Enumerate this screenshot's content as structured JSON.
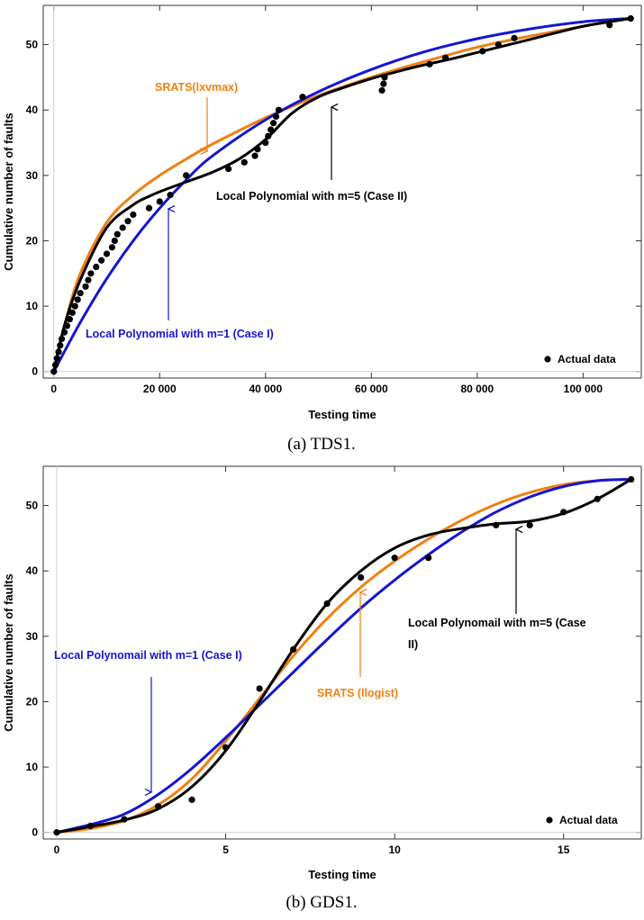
{
  "chart_data": [
    {
      "id": "a",
      "type": "line",
      "caption": "(a)  TDS1.",
      "xlabel": "Testing time",
      "ylabel": "Cumulative number of faults",
      "xlim": [
        -2000,
        111000
      ],
      "ylim": [
        -1,
        56
      ],
      "xticks": [
        0,
        20000,
        40000,
        60000,
        80000,
        100000
      ],
      "xtick_labels": [
        "0",
        "20 000",
        "40 000",
        "60 000",
        "80 000",
        "100 000"
      ],
      "yticks": [
        0,
        10,
        20,
        30,
        40,
        50
      ],
      "ytick_labels": [
        "0",
        "10",
        "20",
        "30",
        "40",
        "50"
      ],
      "grid": false,
      "legend": {
        "label": "Actual data",
        "position": "bottom-right"
      },
      "scatter": {
        "name": "Actual data",
        "color": "#000000",
        "x": [
          0,
          300,
          600,
          900,
          1200,
          1500,
          2000,
          2500,
          3000,
          3500,
          4000,
          4500,
          5000,
          6000,
          6500,
          7000,
          8000,
          9000,
          10000,
          11000,
          11500,
          12000,
          13000,
          14000,
          15000,
          18000,
          20000,
          22000,
          25000,
          33000,
          36000,
          38000,
          38500,
          40000,
          40500,
          41000,
          41500,
          42000,
          42500,
          47000,
          62000,
          62300,
          62500,
          71000,
          74000,
          81000,
          84000,
          87000,
          105000,
          109000
        ],
        "y": [
          0,
          1,
          2,
          3,
          4,
          5,
          6,
          7,
          8,
          9,
          10,
          11,
          12,
          13,
          14,
          15,
          16,
          17,
          18,
          19,
          20,
          21,
          22,
          23,
          24,
          25,
          26,
          27,
          30,
          31,
          32,
          33,
          34,
          35,
          36,
          37,
          38,
          39,
          40,
          42,
          43,
          44,
          45,
          47,
          48,
          49,
          50,
          51,
          53,
          54
        ]
      },
      "series": [
        {
          "name": "SRATS(lxvmax)",
          "color": "#f08010",
          "x": [
            0,
            2000,
            5000,
            10000,
            15000,
            20000,
            25000,
            30000,
            40000,
            50000,
            60000,
            70000,
            80000,
            90000,
            100000,
            109000
          ],
          "y": [
            0,
            7,
            15,
            22.8,
            27,
            30,
            32.5,
            34.8,
            38.8,
            42.2,
            45,
            47.4,
            49.6,
            51.3,
            52.8,
            54
          ]
        },
        {
          "name": "Local Polynomial with m=1 (Case I)",
          "color": "#1515d0",
          "x": [
            0,
            5000,
            10000,
            15000,
            20000,
            25000,
            30000,
            40000,
            50000,
            60000,
            70000,
            80000,
            90000,
            100000,
            109000
          ],
          "y": [
            0,
            7.5,
            14.2,
            20,
            25,
            29.3,
            33,
            38.5,
            42.8,
            46.2,
            48.9,
            50.9,
            52.4,
            53.5,
            54
          ]
        },
        {
          "name": "Local Polynomial with m=5 (Case II)",
          "color": "#000000",
          "x": [
            0,
            2000,
            5000,
            10000,
            15000,
            18000,
            20000,
            25000,
            30000,
            35000,
            40000,
            45000,
            50000,
            55000,
            60000,
            65000,
            70000,
            75000,
            80000,
            90000,
            100000,
            109000
          ],
          "y": [
            0,
            7,
            14,
            22,
            25.5,
            26.8,
            27.5,
            29,
            30.5,
            32.5,
            35.5,
            39.5,
            42,
            43.5,
            44.8,
            45.9,
            46.9,
            47.8,
            48.8,
            50.8,
            52.8,
            54
          ]
        }
      ],
      "annotations": [
        {
          "text": "SRATS(lxvmax)",
          "color": "#f08010"
        },
        {
          "text": "Local Polynomial with m=5 (Case II)",
          "color": "#000000"
        },
        {
          "text": "Local Polynomial with m=1 (Case I)",
          "color": "#1515d0"
        }
      ]
    },
    {
      "id": "b",
      "type": "line",
      "caption": "(b)  GDS1.",
      "xlabel": "Testing time",
      "ylabel": "Cumulative number of faults",
      "xlim": [
        -0.4,
        17.3
      ],
      "ylim": [
        -1,
        56
      ],
      "xticks": [
        0,
        5,
        10,
        15
      ],
      "xtick_labels": [
        "0",
        "5",
        "10",
        "15"
      ],
      "yticks": [
        0,
        10,
        20,
        30,
        40,
        50
      ],
      "ytick_labels": [
        "0",
        "10",
        "20",
        "30",
        "40",
        "50"
      ],
      "grid": false,
      "legend": {
        "label": "Actual data",
        "position": "bottom-right"
      },
      "scatter": {
        "name": "Actual data",
        "color": "#000000",
        "x": [
          0,
          1,
          2,
          3,
          4,
          5,
          6,
          7,
          8,
          9,
          10,
          11,
          13,
          14,
          15,
          16,
          17
        ],
        "y": [
          0,
          1,
          2,
          4,
          5,
          13,
          22,
          28,
          35,
          39,
          42,
          42,
          47,
          47,
          49,
          51,
          54
        ]
      },
      "series": [
        {
          "name": "SRATS (llogist)",
          "color": "#f08010",
          "x": [
            0,
            1,
            2,
            3,
            4,
            5,
            6,
            7,
            8,
            9,
            10,
            11,
            12,
            13,
            14,
            15,
            16,
            17
          ],
          "y": [
            0,
            0.6,
            1.8,
            4.2,
            8.2,
            14,
            20.5,
            27,
            32.7,
            37.5,
            41.5,
            44.9,
            47.8,
            50.2,
            52,
            53.2,
            53.8,
            54
          ]
        },
        {
          "name": "Local Polynomail with m=1 (Case I)",
          "color": "#1515d0",
          "x": [
            0,
            1,
            2,
            3,
            4,
            5,
            6,
            7,
            8,
            9,
            10,
            11,
            12,
            13,
            14,
            15,
            16,
            17
          ],
          "y": [
            0,
            1.2,
            2.8,
            5.8,
            9.8,
            14.5,
            19.5,
            24.5,
            29.5,
            34.3,
            38.6,
            42.5,
            46,
            49,
            51.3,
            52.9,
            53.8,
            54
          ]
        },
        {
          "name": "Local Polynomail with m=5 (Case II)",
          "color": "#000000",
          "x": [
            0,
            1,
            2,
            3,
            4,
            5,
            6,
            7,
            8,
            9,
            10,
            11,
            12,
            13,
            14,
            15,
            16,
            17
          ],
          "y": [
            0,
            0.9,
            1.9,
            3.6,
            7,
            12.5,
            20,
            28,
            35,
            40,
            43.5,
            45.5,
            46.5,
            47.2,
            47.6,
            48.8,
            51,
            54
          ]
        }
      ],
      "annotations": [
        {
          "text": "Local Polynomail with m=1 (Case I)",
          "color": "#1515d0"
        },
        {
          "text": "Local Polynomail with m=5 (Case",
          "color": "#000000"
        },
        {
          "text": "II)",
          "color": "#000000"
        },
        {
          "text": "SRATS (llogist)",
          "color": "#f08010"
        }
      ]
    }
  ]
}
